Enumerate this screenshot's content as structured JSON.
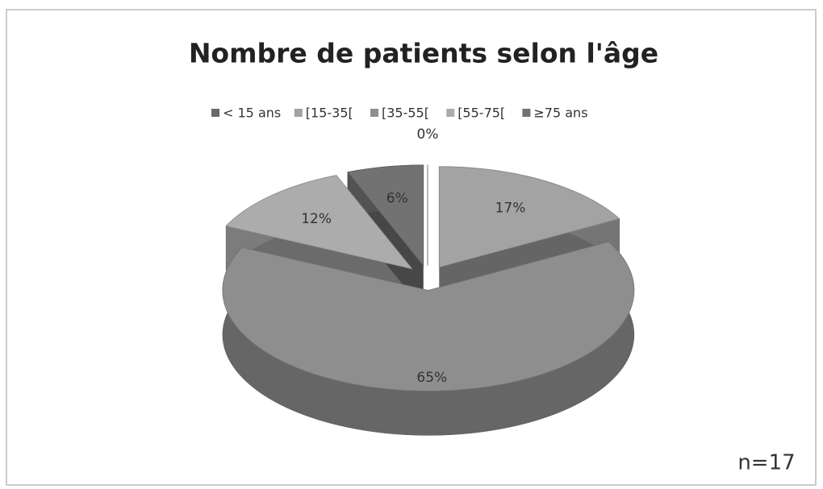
{
  "chart_data": {
    "type": "pie3d",
    "title": "Nombre de patients selon l'âge",
    "categories": [
      "< 15 ans",
      "[15-35[",
      "[35-55[",
      "[55-75[",
      "≥75 ans"
    ],
    "values": [
      0,
      17,
      65,
      12,
      6
    ],
    "value_labels": [
      "0%",
      "17%",
      "65%",
      "12%",
      "6%"
    ],
    "colors": [
      "#6a6a6a",
      "#a3a3a3",
      "#8e8e8e",
      "#acacac",
      "#727272"
    ],
    "legend": "top",
    "annotation": "n=17"
  }
}
